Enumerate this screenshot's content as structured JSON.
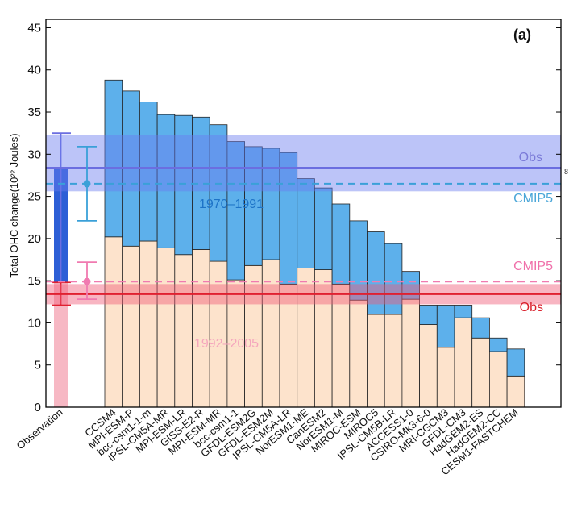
{
  "chart_data": {
    "type": "bar",
    "panel_label": "(a)",
    "ylabel": "Total OHC change(10²² Joules)",
    "ylim": [
      0,
      46
    ],
    "yticks": [
      0,
      5,
      10,
      15,
      20,
      25,
      30,
      35,
      40,
      45
    ],
    "categories": [
      "CCSM4",
      "MPI-ESM-P",
      "bcc-csm1-1-m",
      "IPSL-CM5A-MR",
      "MPI-ESM-LR",
      "GISS-E2-R",
      "MPI-ESM-MR",
      "bcc-csm1-1",
      "GFDL-ESM2G",
      "GFDL-ESM2M",
      "IPSL-CM5A-LR",
      "NorESM1-ME",
      "CanESM2",
      "NorESM1-M",
      "MIROC-ESM",
      "MIROC5",
      "IPSL-CM5B-LR",
      "ACCESS1-0",
      "CSIRO-Mk3-6-0",
      "MRI-CGCM3",
      "GFDL-CM3",
      "HadGEM2-ES",
      "HadGEM2-CC",
      "CESM1-FASTCHEM"
    ],
    "series": [
      {
        "name": "1992–2005",
        "color": "#fde3cc",
        "values": [
          20.2,
          19.1,
          19.7,
          18.9,
          18.1,
          18.7,
          17.3,
          15.1,
          16.8,
          17.5,
          14.6,
          16.5,
          16.3,
          14.6,
          12.7,
          11.0,
          11.0,
          12.8,
          9.8,
          7.1,
          10.6,
          8.2,
          6.6,
          3.7
        ]
      },
      {
        "name": "1970–1991",
        "color": "#5db0eb",
        "values": [
          18.6,
          18.4,
          16.5,
          15.8,
          16.5,
          15.7,
          16.2,
          16.4,
          14.1,
          13.2,
          15.6,
          10.6,
          9.7,
          9.5,
          9.4,
          9.8,
          8.4,
          3.3,
          2.3,
          5.0,
          1.5,
          2.4,
          1.6,
          3.2
        ]
      }
    ],
    "annotations": {
      "period_early": "1970–1991",
      "period_late": "1992–2005"
    },
    "observation": {
      "label": "Observation",
      "late_value": 13.4,
      "late_err": [
        12.1,
        14.8
      ],
      "early_value": 15.0,
      "early_err": [
        15.0,
        32.5
      ],
      "total_value": 28.4
    },
    "reference_lines": [
      {
        "name": "Obs",
        "value": 28.4,
        "band": [
          25.6,
          32.3
        ],
        "style": "solid",
        "color": "#6b6ee0"
      },
      {
        "name": "CMIP5",
        "value": 26.5,
        "err": [
          22.1,
          30.9
        ],
        "style": "dashed",
        "color": "#3aa0d8"
      },
      {
        "name": "CMIP5",
        "value": 14.9,
        "err": [
          12.8,
          17.2
        ],
        "style": "dashed",
        "color": "#f07ab0"
      },
      {
        "name": "Obs",
        "value": 13.4,
        "band": [
          12.2,
          14.6
        ],
        "style": "solid",
        "color": "#e02030"
      }
    ],
    "stray_text": "8"
  }
}
